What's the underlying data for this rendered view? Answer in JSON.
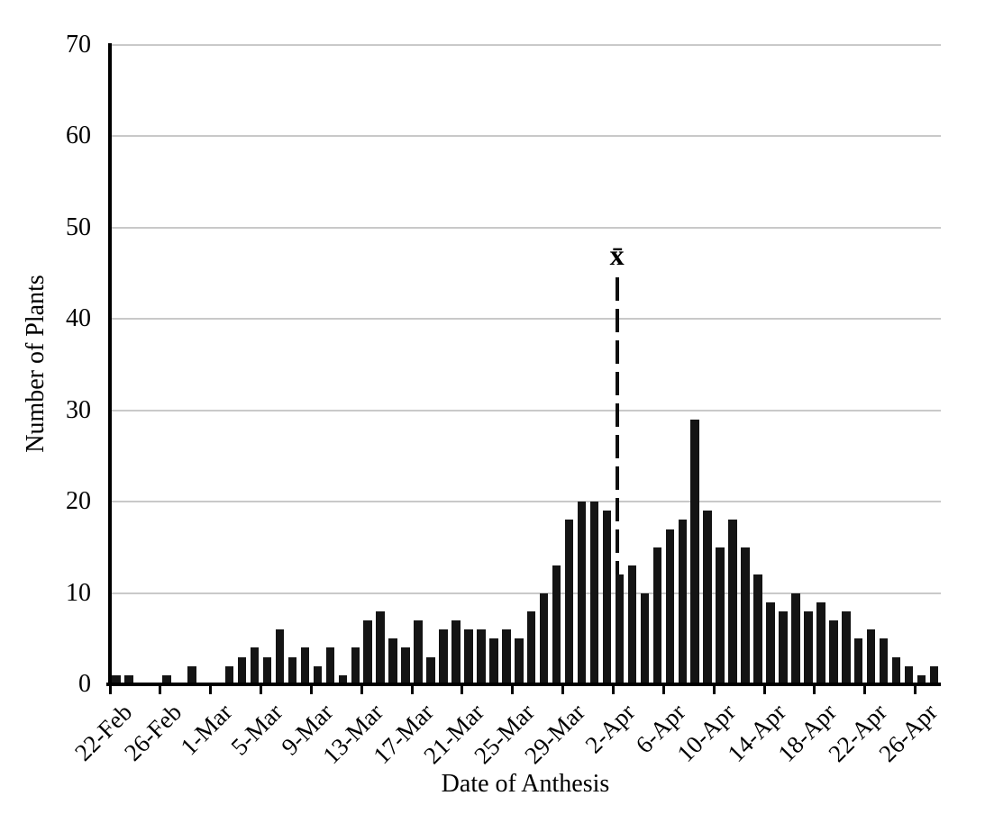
{
  "figure": {
    "background": "#ffffff"
  },
  "chart_data": {
    "type": "bar",
    "title": "",
    "xlabel": "Date of Anthesis",
    "ylabel": "Number of Plants",
    "ylim": [
      0,
      70
    ],
    "ytick_step": 10,
    "yticks": [
      "0",
      "10",
      "20",
      "30",
      "40",
      "50",
      "60",
      "70"
    ],
    "grid": "horizontal-gridlines-light-gray",
    "legend": "none",
    "bar_color": "#141414",
    "xtick_label_every": 4,
    "xtick_labels": [
      "22-Feb",
      "26-Feb",
      "1-Mar",
      "5-Mar",
      "9-Mar",
      "13-Mar",
      "17-Mar",
      "21-Mar",
      "25-Mar",
      "29-Mar",
      "2-Apr",
      "6-Apr",
      "10-Apr",
      "14-Apr",
      "18-Apr",
      "22-Apr",
      "26-Apr"
    ],
    "categories": [
      "22-Feb",
      "23-Feb",
      "24-Feb",
      "25-Feb",
      "26-Feb",
      "27-Feb",
      "28-Feb",
      "29-Feb",
      "1-Mar",
      "2-Mar",
      "3-Mar",
      "4-Mar",
      "5-Mar",
      "6-Mar",
      "7-Mar",
      "8-Mar",
      "9-Mar",
      "10-Mar",
      "11-Mar",
      "12-Mar",
      "13-Mar",
      "14-Mar",
      "15-Mar",
      "16-Mar",
      "17-Mar",
      "18-Mar",
      "19-Mar",
      "20-Mar",
      "21-Mar",
      "22-Mar",
      "23-Mar",
      "24-Mar",
      "25-Mar",
      "26-Mar",
      "27-Mar",
      "28-Mar",
      "29-Mar",
      "30-Mar",
      "31-Mar",
      "1-Apr",
      "2-Apr",
      "3-Apr",
      "4-Apr",
      "5-Apr",
      "6-Apr",
      "7-Apr",
      "8-Apr",
      "9-Apr",
      "10-Apr",
      "11-Apr",
      "12-Apr",
      "13-Apr",
      "14-Apr",
      "15-Apr",
      "16-Apr",
      "17-Apr",
      "18-Apr",
      "19-Apr",
      "20-Apr",
      "21-Apr",
      "22-Apr",
      "23-Apr",
      "24-Apr",
      "25-Apr",
      "26-Apr",
      "27-Apr"
    ],
    "values": [
      1,
      1,
      0,
      0,
      1,
      0,
      2,
      0,
      0,
      2,
      3,
      4,
      3,
      6,
      3,
      4,
      2,
      4,
      1,
      4,
      7,
      8,
      5,
      4,
      7,
      3,
      6,
      7,
      6,
      6,
      5,
      6,
      5,
      8,
      10,
      13,
      18,
      20,
      20,
      19,
      12,
      13,
      10,
      15,
      17,
      18,
      29,
      19,
      15,
      18,
      15,
      12,
      9,
      8,
      10,
      8,
      9,
      7,
      8,
      5,
      6,
      5,
      3,
      2,
      1,
      2
    ],
    "mean_marker": {
      "label": "x̄",
      "style": "vertical-dashed-line",
      "category_position": 40.3
    }
  }
}
